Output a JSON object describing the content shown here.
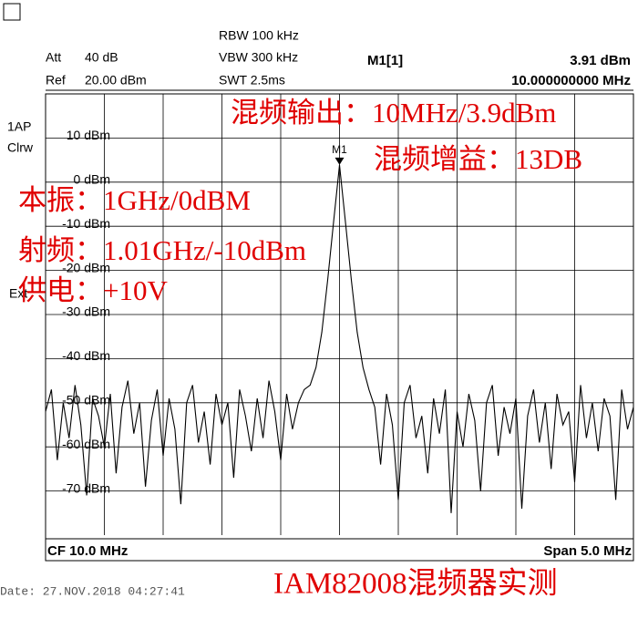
{
  "header": {
    "att": "Att",
    "att_value": "40 dB",
    "ref": "Ref",
    "ref_value": "20.00 dBm",
    "rbw": "RBW 100 kHz",
    "vbw": "VBW 300 kHz",
    "swt": "SWT 2.5ms",
    "marker_name": "M1[1]",
    "marker_level": "3.91 dBm",
    "marker_freq": "10.000000000 MHz"
  },
  "side": {
    "trace_mode": "1AP",
    "detector": "Clrw",
    "ext": "Ext"
  },
  "footer": {
    "center": "CF 10.0 MHz",
    "span": "Span 5.0 MHz",
    "date": "Date: 27.NOV.2018  04:27:41",
    "caption": "IAM82008混频器实测"
  },
  "annotations": [
    "混频输出：10MHz/3.9dBm",
    "混频增益：13DB",
    "本振：1GHz/0dBM",
    "射频：1.01GHz/-10dBm",
    "供电：+10V"
  ],
  "chart_data": {
    "type": "line",
    "color": "#000000",
    "xlim": [
      7.5,
      12.5
    ],
    "ylim": [
      -80,
      20
    ],
    "yticks": [
      {
        "value": 10,
        "label": "10 dBm"
      },
      {
        "value": 0,
        "label": "0 dBm"
      },
      {
        "value": -10,
        "label": "-10 dBm"
      },
      {
        "value": -20,
        "label": "-20 dBm"
      },
      {
        "value": -30,
        "label": "-30 dBm"
      },
      {
        "value": -40,
        "label": "-40 dBm"
      },
      {
        "value": -50,
        "label": "-50 dBm"
      },
      {
        "value": -60,
        "label": "-60 dBm"
      },
      {
        "value": -70,
        "label": "-70 dBm"
      }
    ],
    "grid": true,
    "marker": {
      "label": "M1",
      "x": 10,
      "y": 3.91
    },
    "x": [
      7.5,
      7.55,
      7.6,
      7.65,
      7.7,
      7.75,
      7.8,
      7.85,
      7.9,
      7.95,
      8,
      8.05,
      8.1,
      8.15,
      8.2,
      8.25,
      8.3,
      8.35,
      8.4,
      8.45,
      8.5,
      8.55,
      8.6,
      8.65,
      8.7,
      8.75,
      8.8,
      8.85,
      8.9,
      8.95,
      9,
      9.05,
      9.1,
      9.15,
      9.2,
      9.25,
      9.3,
      9.35,
      9.4,
      9.45,
      9.5,
      9.55,
      9.6,
      9.65,
      9.7,
      9.75,
      9.8,
      9.85,
      9.9,
      9.95,
      10,
      10.05,
      10.1,
      10.15,
      10.2,
      10.25,
      10.3,
      10.35,
      10.4,
      10.45,
      10.5,
      10.55,
      10.6,
      10.65,
      10.7,
      10.75,
      10.8,
      10.85,
      10.9,
      10.95,
      11,
      11.05,
      11.1,
      11.15,
      11.2,
      11.25,
      11.3,
      11.35,
      11.4,
      11.45,
      11.5,
      11.55,
      11.6,
      11.65,
      11.7,
      11.75,
      11.8,
      11.85,
      11.9,
      11.95,
      12,
      12.05,
      12.1,
      12.15,
      12.2,
      12.25,
      12.3,
      12.35,
      12.4,
      12.45,
      12.5
    ],
    "values": [
      -52,
      -47,
      -63,
      -50,
      -58,
      -46,
      -55,
      -71,
      -49,
      -53,
      -60,
      -48,
      -66,
      -51,
      -45,
      -57,
      -50,
      -69,
      -54,
      -47,
      -62,
      -49,
      -56,
      -73,
      -50,
      -46,
      -59,
      -52,
      -64,
      -48,
      -55,
      -50,
      -67,
      -47,
      -53,
      -61,
      -49,
      -58,
      -45,
      -52,
      -63,
      -48,
      -56,
      -50,
      -47,
      -46,
      -42,
      -34,
      -22,
      -9,
      3.91,
      -9,
      -22,
      -34,
      -42,
      -47,
      -51,
      -64,
      -48,
      -55,
      -72,
      -50,
      -46,
      -58,
      -53,
      -66,
      -49,
      -57,
      -47,
      -75,
      -52,
      -60,
      -48,
      -54,
      -70,
      -50,
      -46,
      -62,
      -51,
      -57,
      -49,
      -74,
      -53,
      -47,
      -59,
      -50,
      -65,
      -48,
      -55,
      -52,
      -68,
      -46,
      -58,
      -50,
      -61,
      -49,
      -53,
      -72,
      -47,
      -56,
      -51
    ]
  }
}
